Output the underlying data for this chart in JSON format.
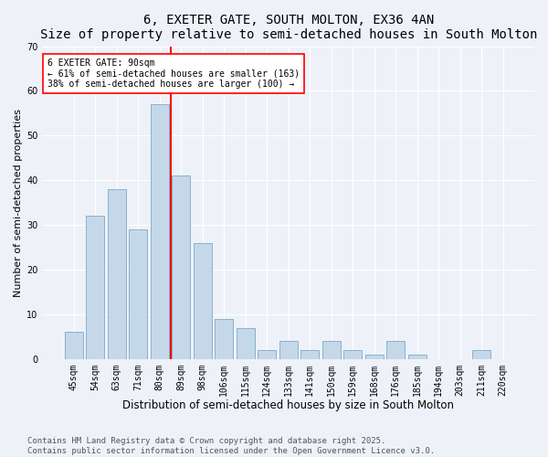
{
  "title": "6, EXETER GATE, SOUTH MOLTON, EX36 4AN",
  "subtitle": "Size of property relative to semi-detached houses in South Molton",
  "xlabel": "Distribution of semi-detached houses by size in South Molton",
  "ylabel": "Number of semi-detached properties",
  "categories": [
    "45sqm",
    "54sqm",
    "63sqm",
    "71sqm",
    "80sqm",
    "89sqm",
    "98sqm",
    "106sqm",
    "115sqm",
    "124sqm",
    "133sqm",
    "141sqm",
    "150sqm",
    "159sqm",
    "168sqm",
    "176sqm",
    "185sqm",
    "194sqm",
    "203sqm",
    "211sqm",
    "220sqm"
  ],
  "values": [
    6,
    32,
    38,
    29,
    57,
    41,
    26,
    9,
    7,
    2,
    4,
    2,
    4,
    2,
    1,
    4,
    1,
    0,
    0,
    2,
    0
  ],
  "bar_color": "#c5d8ea",
  "bar_edge_color": "#7aaac8",
  "vline_x_index": 5,
  "vline_color": "red",
  "annotation_title": "6 EXETER GATE: 90sqm",
  "annotation_line1": "← 61% of semi-detached houses are smaller (163)",
  "annotation_line2": "38% of semi-detached houses are larger (100) →",
  "annotation_box_color": "white",
  "annotation_box_edge": "red",
  "ylim": [
    0,
    70
  ],
  "yticks": [
    0,
    10,
    20,
    30,
    40,
    50,
    60,
    70
  ],
  "background_color": "#eef2f8",
  "plot_bg_color": "#eef2f8",
  "footer": "Contains HM Land Registry data © Crown copyright and database right 2025.\nContains public sector information licensed under the Open Government Licence v3.0.",
  "title_fontsize": 10,
  "xlabel_fontsize": 8.5,
  "ylabel_fontsize": 8,
  "tick_fontsize": 7,
  "footer_fontsize": 6.5
}
